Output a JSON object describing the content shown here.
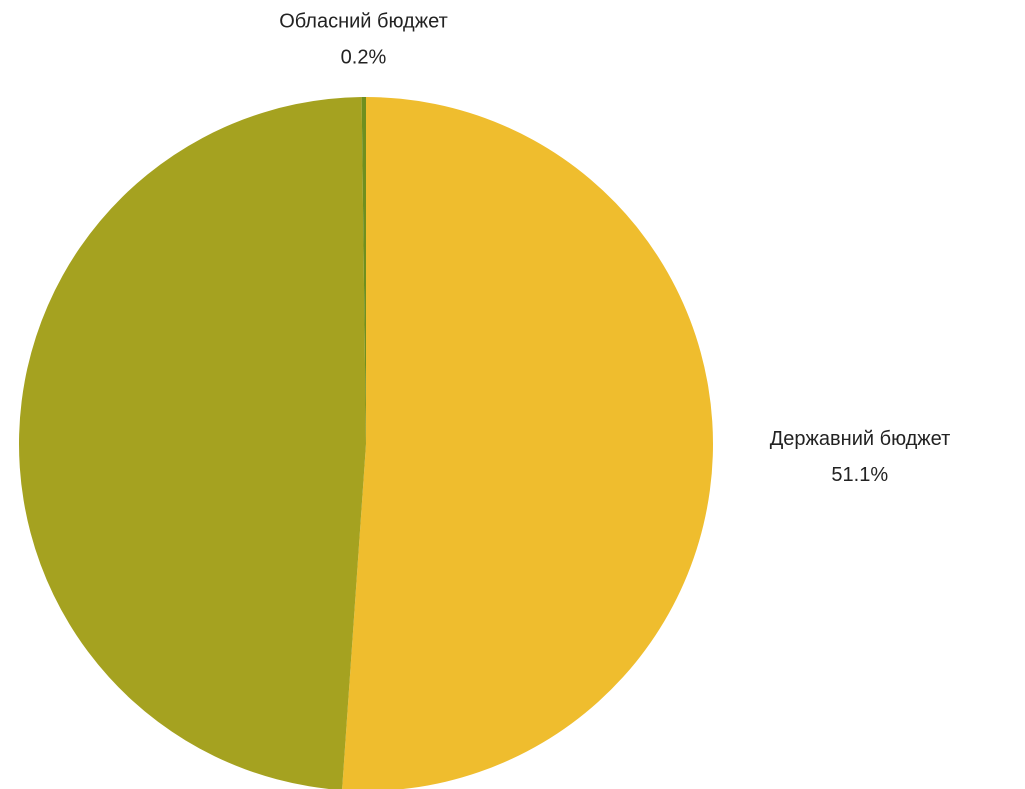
{
  "chart_data": {
    "type": "pie",
    "categories": [
      "Державний бюджет",
      null,
      "Обласний бюджет"
    ],
    "values": [
      51.1,
      48.7,
      0.2
    ],
    "value_labels": [
      "51.1%",
      null,
      "0.2%"
    ],
    "colors": [
      "#efbd2e",
      "#a5a220",
      "#6f8f1f"
    ]
  }
}
